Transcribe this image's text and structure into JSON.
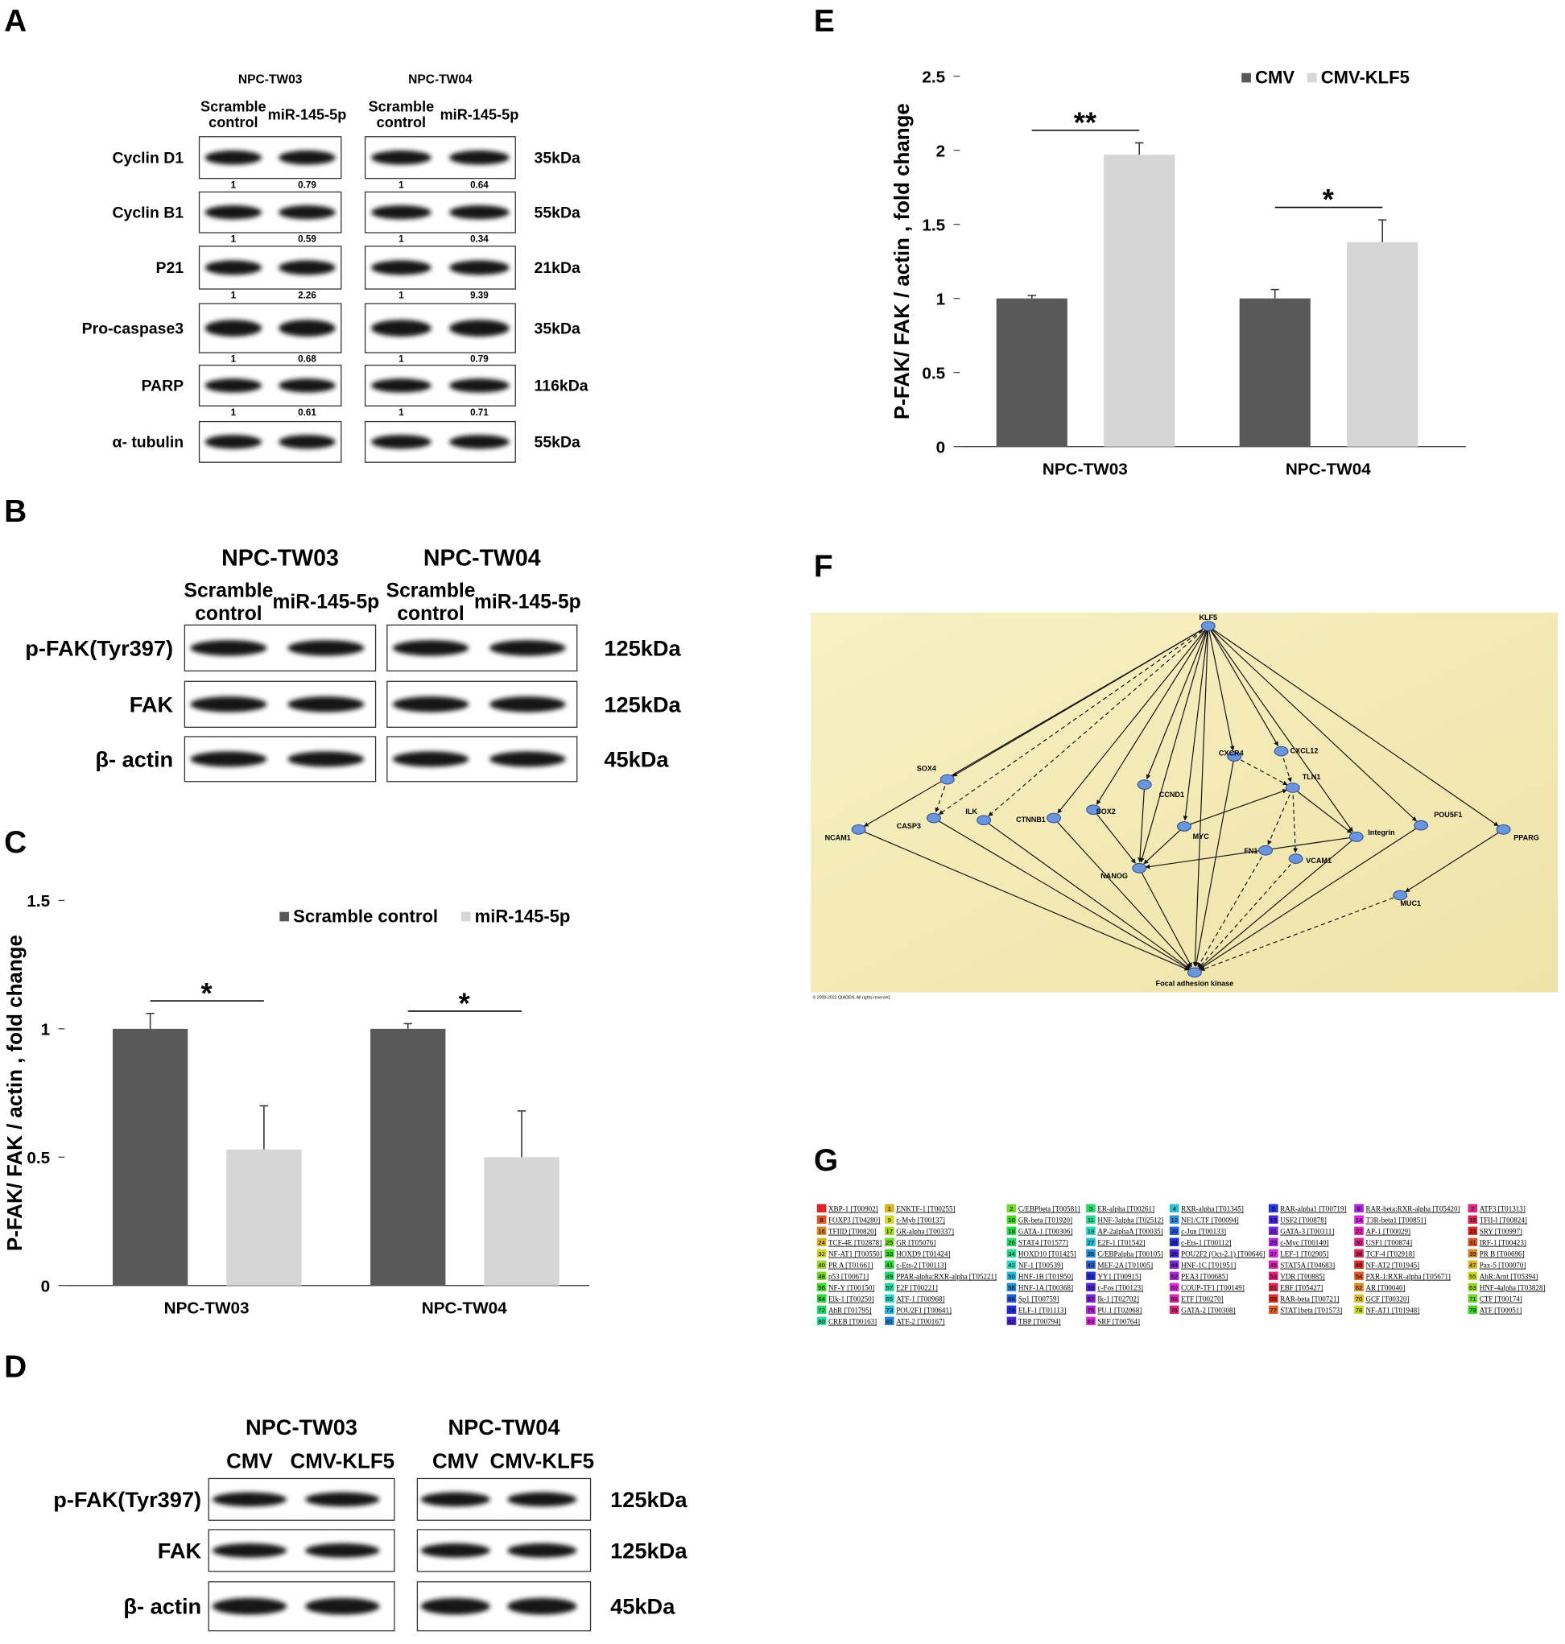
{
  "panel_labels": [
    "A",
    "B",
    "C",
    "D",
    "E",
    "F",
    "G"
  ],
  "blot_a": {
    "groups": [
      {
        "name": "NPC-TW03",
        "lanes": [
          [
            "Scramble",
            "control"
          ],
          [
            "miR-145-5p"
          ]
        ]
      },
      {
        "name": "NPC-TW04",
        "lanes": [
          [
            "Scramble",
            "control"
          ],
          [
            "miR-145-5p"
          ]
        ]
      }
    ],
    "rows": [
      {
        "label": "Cyclin D1",
        "kda": "35kDa",
        "values": [
          [
            1,
            0.79
          ],
          [
            1,
            0.64
          ]
        ]
      },
      {
        "label": "Cyclin B1",
        "kda": "55kDa",
        "values": [
          [
            1,
            0.59
          ],
          [
            1,
            0.34
          ]
        ]
      },
      {
        "label": "P21",
        "kda": "21kDa",
        "values": [
          [
            1,
            2.26
          ],
          [
            1,
            9.39
          ]
        ]
      },
      {
        "label": "Pro-caspase3",
        "kda": "35kDa",
        "values": [
          [
            1,
            0.68
          ],
          [
            1,
            0.79
          ]
        ]
      },
      {
        "label": "PARP",
        "kda": "116kDa",
        "values": [
          [
            1,
            0.61
          ],
          [
            1,
            0.71
          ]
        ]
      },
      {
        "label": "α- tubulin",
        "kda": "55kDa"
      }
    ]
  },
  "blot_b": {
    "groups": [
      {
        "name": "NPC-TW03",
        "lanes": [
          [
            "Scramble",
            "control"
          ],
          [
            "miR-145-5p"
          ]
        ]
      },
      {
        "name": "NPC-TW04",
        "lanes": [
          [
            "Scramble",
            "control"
          ],
          [
            "miR-145-5p"
          ]
        ]
      }
    ],
    "rows": [
      {
        "label": "p-FAK(Tyr397)",
        "kda": "125kDa"
      },
      {
        "label": "FAK",
        "kda": "125kDa"
      },
      {
        "label": "β- actin",
        "kda": "45kDa"
      }
    ]
  },
  "blot_d": {
    "groups": [
      {
        "name": "NPC-TW03",
        "lanes": [
          [
            "CMV"
          ],
          [
            "CMV-KLF5"
          ]
        ]
      },
      {
        "name": "NPC-TW04",
        "lanes": [
          [
            "CMV"
          ],
          [
            "CMV-KLF5"
          ]
        ]
      }
    ],
    "rows": [
      {
        "label": "p-FAK(Tyr397)",
        "kda": "125kDa"
      },
      {
        "label": "FAK",
        "kda": "125kDa"
      },
      {
        "label": "β- actin",
        "kda": "45kDa"
      }
    ]
  },
  "chart_data": [
    {
      "type": "bar",
      "ylabel": "P-FAK/ FAK / actin , fold change",
      "categories": [
        "NPC-TW03",
        "NPC-TW04"
      ],
      "series": [
        {
          "name": "Scramble control",
          "color": "#595959",
          "values": [
            1,
            1
          ],
          "errors": [
            0.06,
            0.02
          ]
        },
        {
          "name": "miR-145-5p",
          "color": "#d6d6d6",
          "values": [
            0.53,
            0.5
          ],
          "errors": [
            0.17,
            0.18
          ]
        }
      ],
      "ylim": [
        0,
        1.5
      ],
      "yticks": [
        0,
        0.5,
        1,
        1.5
      ],
      "grid": false,
      "legend": "top-right",
      "annotations": [
        "*",
        "*"
      ]
    },
    {
      "type": "bar",
      "ylabel": "P-FAK/ FAK / actin , fold change",
      "categories": [
        "NPC-TW03",
        "NPC-TW04"
      ],
      "series": [
        {
          "name": "CMV",
          "color": "#595959",
          "values": [
            1,
            1
          ],
          "errors": [
            0.02,
            0.06
          ]
        },
        {
          "name": "CMV-KLF5",
          "color": "#d6d6d6",
          "values": [
            1.97,
            1.38
          ],
          "errors": [
            0.08,
            0.15
          ]
        }
      ],
      "ylim": [
        0,
        2.5
      ],
      "yticks": [
        0,
        0.5,
        1,
        1.5,
        2,
        2.5
      ],
      "grid": false,
      "legend": "top-right",
      "annotations": [
        "**",
        "*"
      ]
    }
  ],
  "network": {
    "nodes": [
      "KLF5",
      "SOX4",
      "NCAM1",
      "CASP3",
      "ILK",
      "CTNNB1",
      "SOX2",
      "CCND1",
      "CXCR4",
      "CXCL12",
      "TLN1",
      "MYC",
      "Integrin",
      "POU5F1",
      "PPARG",
      "FN1",
      "VCAM1",
      "NANOG",
      "MUC1",
      "Focal adhesion kinase"
    ],
    "copyright": "© 2000-2022 QIAGEN, All rights reserved."
  },
  "legend_table": {
    "columns": [
      [
        {
          "label": "XBP-1 [T00902]"
        },
        {
          "n": 8,
          "label": "FOXP3 [T04280]"
        },
        {
          "n": 16,
          "label": "TFIID [T00820]"
        },
        {
          "n": 24,
          "label": "TCF-4E [T02878]"
        },
        {
          "n": 32,
          "label": "NF-AT1 [T00550]"
        },
        {
          "n": 40,
          "label": "PR A [T01661]"
        },
        {
          "n": 48,
          "label": "p53 [T00671]"
        },
        {
          "n": 56,
          "label": "NF-Y [T00150]"
        },
        {
          "n": 64,
          "label": "Elk-1 [T00250]"
        },
        {
          "n": 72,
          "label": "AhR [T01795]"
        },
        {
          "n": 80,
          "label": "CREB [T00163]"
        }
      ],
      [
        {
          "n": 1,
          "label": "ENKTF-1 [T00255]"
        },
        {
          "n": 9,
          "label": "c-Myb [T00137]"
        },
        {
          "n": 17,
          "label": "GR-alpha [T00337]"
        },
        {
          "n": 25,
          "label": "GR [T05076]"
        },
        {
          "n": 33,
          "label": "HOXD9 [T01424]"
        },
        {
          "n": 41,
          "label": "c-Ets-2 [T00113]"
        },
        {
          "n": 49,
          "label": "PPAR-alpha:RXR-alpha [T05221]"
        },
        {
          "n": 57,
          "label": "E2F [T00221]"
        },
        {
          "n": 65,
          "label": "ATF-1 [T00968]"
        },
        {
          "n": 73,
          "label": "POU2F1 [T00641]"
        },
        {
          "n": 81,
          "label": "ATF-2 [T00167]"
        }
      ],
      [
        {
          "n": 2,
          "label": "C/EBPbeta [T00581]"
        },
        {
          "n": 10,
          "label": "GR-beta [T01920]"
        },
        {
          "n": 18,
          "label": "GATA-1 [T00306]"
        },
        {
          "n": 26,
          "label": "STAT4 [T01577]"
        },
        {
          "n": 34,
          "label": "HOXD10 [T01425]"
        },
        {
          "n": 42,
          "label": "NF-1 [T00539]"
        },
        {
          "n": 50,
          "label": "HNF-1B [T01950]"
        },
        {
          "n": 58,
          "label": "HNF-1A [T00368]"
        },
        {
          "n": 66,
          "label": "Sp1 [T00759]"
        },
        {
          "n": 74,
          "label": "ELF-1 [T01113]"
        },
        {
          "n": 82,
          "label": "TBP [T00794]"
        }
      ],
      [
        {
          "n": 3,
          "label": "ER-alpha [T00261]"
        },
        {
          "n": 11,
          "label": "HNF-3alpha [T02512]"
        },
        {
          "n": 19,
          "label": "AP-2alphaA [T00035]"
        },
        {
          "n": 27,
          "label": "E2F-1 [T01542]"
        },
        {
          "n": 35,
          "label": "C/EBPalpha [T00105]"
        },
        {
          "n": 43,
          "label": "MEF-2A [T01005]"
        },
        {
          "n": 51,
          "label": "YY1 [T00915]"
        },
        {
          "n": 59,
          "label": "c-Fos [T00123]"
        },
        {
          "n": 67,
          "label": "Ik-1 [T02702]"
        },
        {
          "n": 75,
          "label": "PU.1 [T02068]"
        },
        {
          "n": 83,
          "label": "SRF [T00764]"
        }
      ],
      [
        {
          "n": 4,
          "label": "RXR-alpha [T01345]"
        },
        {
          "n": 12,
          "label": "NF1/CTF [T00094]"
        },
        {
          "n": 20,
          "label": "c-Jun [T00133]"
        },
        {
          "n": 28,
          "label": "c-Ets-1 [T00112]"
        },
        {
          "n": 36,
          "label": "POU2F2 (Oct-2.1) [T00646]"
        },
        {
          "n": 44,
          "label": "HNF-1C [T01951]"
        },
        {
          "n": 52,
          "label": "PEA3 [T00685]"
        },
        {
          "n": 60,
          "label": "COUP-TF1 [T00149]"
        },
        {
          "n": 68,
          "label": "ETF [T00270]"
        },
        {
          "n": 76,
          "label": "GATA-2 [T00308]"
        }
      ],
      [
        {
          "n": 5,
          "label": "RAR-alpha1 [T00719]"
        },
        {
          "n": 13,
          "label": "USF2 [T00878]"
        },
        {
          "n": 21,
          "label": "GATA-3 [T00311]"
        },
        {
          "n": 29,
          "label": "c-Myc [T00140]"
        },
        {
          "n": 37,
          "label": "LEF-1 [T02905]"
        },
        {
          "n": 45,
          "label": "STAT5A [T04683]"
        },
        {
          "n": 53,
          "label": "VDR [T00885]"
        },
        {
          "n": 61,
          "label": "EBF [T05427]"
        },
        {
          "n": 69,
          "label": "RAR-beta [T00721]"
        },
        {
          "n": 77,
          "label": "STAT1beta [T01573]"
        }
      ],
      [
        {
          "n": 6,
          "label": "RAR-beta:RXR-alpha [T05420]"
        },
        {
          "n": 14,
          "label": "T3R-beta1 [T00851]"
        },
        {
          "n": 22,
          "label": "AP-1 [T00029]"
        },
        {
          "n": 30,
          "label": "USF1 [T00874]"
        },
        {
          "n": 38,
          "label": "TCF-4 [T02918]"
        },
        {
          "n": 46,
          "label": "NF-AT2 [T01945]"
        },
        {
          "n": 54,
          "label": "PXR-1:RXR-alpha [T05671]"
        },
        {
          "n": 62,
          "label": "AR [T00040]"
        },
        {
          "n": 70,
          "label": "GCF [T00320]"
        },
        {
          "n": 78,
          "label": "NF-AT1 [T01948]"
        }
      ],
      [
        {
          "n": 7,
          "label": "ATF3 [T01313]"
        },
        {
          "n": 15,
          "label": "TFII-I [T00824]"
        },
        {
          "n": 23,
          "label": "SRY [T00997]"
        },
        {
          "n": 31,
          "label": "IRF-1 [T00423]"
        },
        {
          "n": 39,
          "label": "PR B [T00696]"
        },
        {
          "n": 47,
          "label": "Pax-5 [T00070]"
        },
        {
          "n": 55,
          "label": "AhR:Arnt [T05394]"
        },
        {
          "n": 63,
          "label": "HNF-4alpha [T03828]"
        },
        {
          "n": 71,
          "label": "CTF [T00174]"
        },
        {
          "n": 79,
          "label": "ATF [T00051]"
        }
      ]
    ]
  }
}
